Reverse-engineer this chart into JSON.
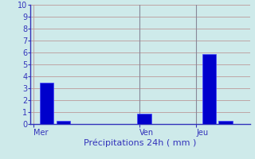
{
  "bar_positions": [
    1,
    2,
    7,
    11,
    12
  ],
  "bar_heights": [
    3.5,
    0.3,
    0.85,
    5.9,
    0.3
  ],
  "bar_color": "#0000cc",
  "bar_edge_color": "#4444ff",
  "bar_width": 0.85,
  "xlim": [
    0,
    13.5
  ],
  "ylim": [
    0,
    10
  ],
  "yticks": [
    0,
    1,
    2,
    3,
    4,
    5,
    6,
    7,
    8,
    9,
    10
  ],
  "xtick_positions": [
    0.2,
    6.7,
    10.2
  ],
  "xtick_labels": [
    "Mer",
    "Ven",
    "Jeu"
  ],
  "xlabel": "Précipitations 24h ( mm )",
  "background_color": "#ceeaea",
  "grid_color": "#bb9999",
  "tick_color": "#3333bb",
  "label_color": "#3333bb",
  "vline_positions": [
    6.7,
    10.2
  ],
  "vline_color": "#888899",
  "spine_color": "#3333bb",
  "ylabel_fontsize": 7,
  "xlabel_fontsize": 8,
  "ytick_fontsize": 7,
  "xtick_fontsize": 7
}
